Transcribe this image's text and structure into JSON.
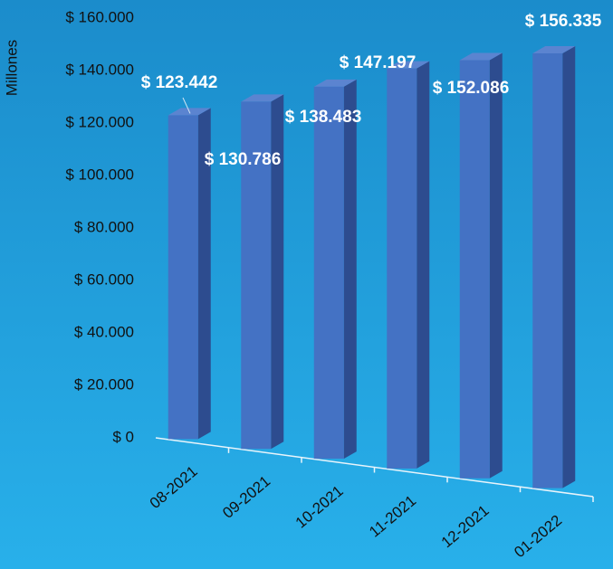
{
  "chart_data": {
    "type": "bar3d",
    "y_axis_label": "Millones",
    "categories": [
      "08-2021",
      "09-2021",
      "10-2021",
      "11-2021",
      "12-2021",
      "01-2022"
    ],
    "values": [
      123442,
      130786,
      138483,
      147197,
      152086,
      156335
    ],
    "value_labels": [
      "$ 123.442",
      "$ 130.786",
      "$ 138.483",
      "$ 147.197",
      "$ 152.086",
      "$ 156.335"
    ],
    "color": "#4472c4",
    "ylim": [
      0,
      160000
    ],
    "yticks": [
      {
        "value": 0,
        "label": "$ 0"
      },
      {
        "value": 20000,
        "label": "$ 20.000"
      },
      {
        "value": 40000,
        "label": "$ 40.000"
      },
      {
        "value": 60000,
        "label": "$ 60.000"
      },
      {
        "value": 80000,
        "label": "$ 80.000"
      },
      {
        "value": 100000,
        "label": "$ 100.000"
      },
      {
        "value": 120000,
        "label": "$ 120.000"
      },
      {
        "value": 140000,
        "label": "$ 140.000"
      },
      {
        "value": 160000,
        "label": "$ 160.000"
      }
    ],
    "grid": false
  }
}
